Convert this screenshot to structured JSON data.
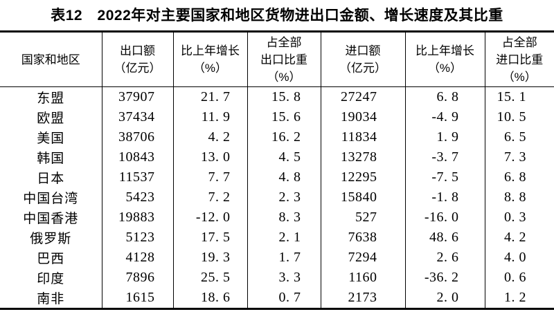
{
  "title": "表12　2022年对主要国家和地区货物进出口金额、增长速度及其比重",
  "table": {
    "headers": [
      "国家和地区",
      "出口额\n（亿元）",
      "比上年增长\n（%）",
      "占全部\n出口比重\n（%）",
      "进口额\n（亿元）",
      "比上年增长\n（%）",
      "占全部\n进口比重\n（%）"
    ],
    "rows": [
      {
        "region": "东盟",
        "values": [
          "37907",
          "21.7",
          "15.8",
          "27247",
          "6.8",
          "15.1"
        ]
      },
      {
        "region": "欧盟",
        "values": [
          "37434",
          "11.9",
          "15.6",
          "19034",
          "-4.9",
          "10.5"
        ]
      },
      {
        "region": "美国",
        "values": [
          "38706",
          "4.2",
          "16.2",
          "11834",
          "1.9",
          "6.5"
        ]
      },
      {
        "region": "韩国",
        "values": [
          "10843",
          "13.0",
          "4.5",
          "13278",
          "-3.7",
          "7.3"
        ]
      },
      {
        "region": "日本",
        "values": [
          "11537",
          "7.7",
          "4.8",
          "12295",
          "-7.5",
          "6.8"
        ]
      },
      {
        "region": "中国台湾",
        "values": [
          "5423",
          "7.2",
          "2.3",
          "15840",
          "-1.8",
          "8.8"
        ]
      },
      {
        "region": "中国香港",
        "values": [
          "19883",
          "-12.0",
          "8.3",
          "527",
          "-16.0",
          "0.3"
        ]
      },
      {
        "region": "俄罗斯",
        "values": [
          "5123",
          "17.5",
          "2.1",
          "7638",
          "48.6",
          "4.2"
        ]
      },
      {
        "region": "巴西",
        "values": [
          "4128",
          "19.3",
          "1.7",
          "7294",
          "2.6",
          "4.0"
        ]
      },
      {
        "region": "印度",
        "values": [
          "7896",
          "25.5",
          "3.3",
          "1160",
          "-36.2",
          "0.6"
        ]
      },
      {
        "region": "南非",
        "values": [
          "1615",
          "18.6",
          "0.7",
          "2173",
          "2.0",
          "1.2"
        ]
      }
    ]
  },
  "colors": {
    "text": "#000000",
    "background": "#ffffff",
    "rule": "#000000"
  }
}
